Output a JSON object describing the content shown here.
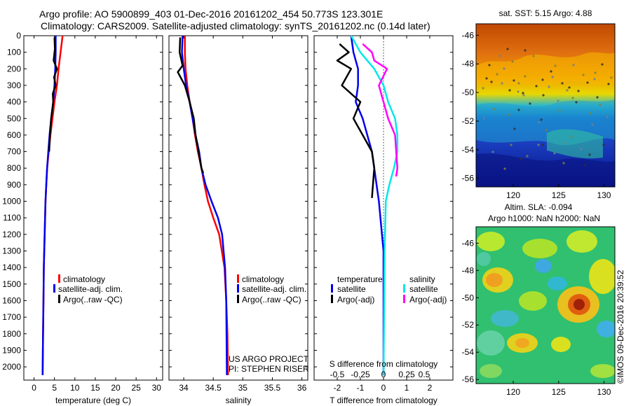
{
  "header": {
    "line1": "Argo profile: AO 5900899_403 01-Dec-2016 20161202_454 50.773S 123.301E",
    "line2": "Climatology: CARS2009. Satellite-adjusted climatology: synTS_20161202.nc (0.14d later)"
  },
  "colors": {
    "climatology": "#ff0000",
    "satellite": "#0000ee",
    "argo": "#000000",
    "s_satellite": "#00e8e8",
    "s_argo": "#ff00ff"
  },
  "chart_data": [
    {
      "type": "line",
      "id": "temperature",
      "xlabel": "temperature (deg C)",
      "xlim": [
        -2.5,
        31.5
      ],
      "xticks": [
        "0",
        "5",
        "10",
        "15",
        "20",
        "25",
        "30"
      ],
      "ylim": [
        0,
        2080
      ],
      "yticks": [
        "0",
        "100",
        "200",
        "300",
        "400",
        "500",
        "600",
        "700",
        "800",
        "900",
        "1000",
        "1100",
        "1200",
        "1300",
        "1400",
        "1500",
        "1600",
        "1700",
        "1800",
        "1900",
        "2000"
      ],
      "legend": [
        "climatology",
        "satellite-adj. clim.",
        "Argo(..raw -QC)"
      ],
      "series": [
        {
          "name": "climatology",
          "color": "#ff0000",
          "x": [
            7.0,
            6.5,
            6.0,
            5.6,
            5.0,
            4.5,
            4.0,
            3.6,
            3.2,
            3.0,
            2.8,
            2.6,
            2.4,
            2.3,
            2.2,
            2.1
          ],
          "y": [
            0,
            100,
            200,
            300,
            400,
            500,
            600,
            700,
            800,
            900,
            1000,
            1200,
            1400,
            1600,
            1800,
            2050
          ]
        },
        {
          "name": "satellite-adj. clim.",
          "color": "#0000ee",
          "x": [
            5.3,
            5.3,
            5.2,
            5.0,
            4.7,
            4.2,
            3.8,
            3.5,
            3.2,
            3.0,
            2.8,
            2.6,
            2.4,
            2.3,
            2.2,
            2.1
          ],
          "y": [
            0,
            100,
            200,
            300,
            400,
            500,
            600,
            700,
            800,
            900,
            1000,
            1200,
            1400,
            1600,
            1800,
            2050
          ]
        },
        {
          "name": "Argo(..raw -QC)",
          "color": "#000000",
          "x": [
            5.0,
            5.1,
            4.8,
            5.6,
            4.9,
            5.3,
            4.6,
            4.7,
            4.2,
            3.9,
            3.7
          ],
          "y": [
            10,
            80,
            150,
            200,
            250,
            300,
            350,
            400,
            500,
            600,
            700
          ]
        }
      ]
    },
    {
      "type": "line",
      "id": "salinity",
      "xlabel": "salinity",
      "xlim": [
        33.75,
        36.1
      ],
      "xticks": [
        "34",
        "34.5",
        "35",
        "35.5",
        "36"
      ],
      "ylim": [
        0,
        2080
      ],
      "legend": [
        "climatology",
        "satellite-adj. clim.",
        "Argo(..raw -QC)"
      ],
      "annotation": [
        "US ARGO PROJECT",
        "PI: STEPHEN RISER"
      ],
      "series": [
        {
          "name": "climatology",
          "color": "#ff0000",
          "x": [
            34.02,
            34.02,
            34.03,
            34.06,
            34.1,
            34.15,
            34.19,
            34.24,
            34.3,
            34.35,
            34.41,
            34.5,
            34.6,
            34.69,
            34.72,
            34.74,
            34.75
          ],
          "y": [
            0,
            100,
            200,
            300,
            400,
            500,
            600,
            700,
            800,
            900,
            1000,
            1100,
            1200,
            1400,
            1600,
            1800,
            2050
          ]
        },
        {
          "name": "satellite-adj. clim.",
          "color": "#0000ee",
          "x": [
            33.98,
            33.97,
            34.0,
            34.04,
            34.1,
            34.15,
            34.2,
            34.26,
            34.3,
            34.37,
            34.47,
            34.58,
            34.65,
            34.7,
            34.72,
            34.73
          ],
          "y": [
            0,
            100,
            200,
            300,
            400,
            500,
            600,
            700,
            800,
            900,
            1000,
            1100,
            1200,
            1400,
            1600,
            2050
          ]
        },
        {
          "name": "Argo(..raw -QC)",
          "color": "#000000",
          "x": [
            33.94,
            33.93,
            33.98,
            33.9,
            34.02,
            34.1,
            34.17,
            34.2,
            34.25,
            34.3,
            34.33
          ],
          "y": [
            10,
            100,
            180,
            220,
            300,
            400,
            500,
            600,
            700,
            800,
            830
          ]
        }
      ]
    },
    {
      "type": "line",
      "id": "difference",
      "xlabel": "T difference from climatology",
      "title": "S difference from climatology",
      "xlim": [
        -3,
        3
      ],
      "xticks": [
        "-2",
        "-1",
        "0",
        "1",
        "2"
      ],
      "top_ticks": [
        "-0.5",
        "-0.25",
        "0",
        "0.25",
        "0.5"
      ],
      "ylim": [
        0,
        2080
      ],
      "legend_headers": [
        "temperature",
        "salinity"
      ],
      "legend_temperature": [
        "satellite",
        "Argo(-adj)"
      ],
      "legend_salinity": [
        "satellite",
        "Argo(-adj)"
      ],
      "series": [
        {
          "name": "T satellite",
          "color": "#0000ee",
          "x": [
            -1.4,
            -1.3,
            -1.1,
            -1.1,
            -1.2,
            -0.9,
            -0.7,
            -0.5,
            -0.4,
            -0.3,
            -0.2,
            0.0,
            0.0
          ],
          "y": [
            0,
            100,
            200,
            300,
            400,
            500,
            600,
            700,
            800,
            900,
            1000,
            1300,
            2050
          ]
        },
        {
          "name": "T Argo(-adj)",
          "color": "#000000",
          "x": [
            -1.9,
            -1.5,
            -2.0,
            -1.4,
            -1.8,
            -1.0,
            -1.3,
            -0.9,
            -0.5,
            -0.4,
            -0.5
          ],
          "y": [
            50,
            100,
            150,
            200,
            300,
            400,
            500,
            600,
            700,
            800,
            980
          ]
        },
        {
          "name": "S satellite",
          "color": "#00e8e8",
          "x": [
            -1.4,
            -1.0,
            -0.4,
            0.0,
            0.2,
            0.5,
            0.6,
            0.6,
            0.45,
            0.25,
            0.1,
            0.05,
            0.0
          ],
          "y": [
            0,
            100,
            200,
            300,
            400,
            500,
            600,
            700,
            800,
            900,
            1000,
            1300,
            2050
          ]
        },
        {
          "name": "S Argo(-adj)",
          "color": "#ff00ff",
          "x": [
            -0.9,
            -0.5,
            -0.4,
            0.15,
            -0.2,
            0.0,
            0.2,
            0.5,
            0.55,
            0.6,
            0.55
          ],
          "y": [
            50,
            100,
            150,
            200,
            300,
            400,
            500,
            600,
            700,
            800,
            850
          ]
        }
      ]
    },
    {
      "type": "heatmap",
      "id": "sst_map",
      "title": "sat. SST: 5.15 Argo: 4.88",
      "xticks": [
        "120",
        "125",
        "130"
      ],
      "yticks": [
        "-46",
        "-48",
        "-50",
        "-52",
        "-54",
        "-56"
      ]
    },
    {
      "type": "heatmap",
      "id": "sla_map",
      "title_line1": "Altim. SLA: -0.094",
      "title_line2": "Argo h1000: NaN h2000: NaN",
      "xticks": [
        "120",
        "125",
        "130"
      ],
      "yticks": [
        "-46",
        "-48",
        "-50",
        "-52",
        "-54",
        "-56"
      ],
      "credit": "©IMOS 09-Dec-2016 20:39:52"
    }
  ]
}
